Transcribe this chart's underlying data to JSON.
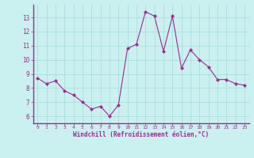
{
  "x": [
    0,
    1,
    2,
    3,
    4,
    5,
    6,
    7,
    8,
    9,
    10,
    11,
    12,
    13,
    14,
    15,
    16,
    17,
    18,
    19,
    20,
    21,
    22,
    23
  ],
  "y": [
    8.7,
    8.3,
    8.5,
    7.8,
    7.5,
    7.0,
    6.5,
    6.7,
    6.0,
    6.8,
    10.8,
    11.1,
    13.4,
    13.1,
    10.6,
    13.1,
    9.4,
    10.7,
    10.0,
    9.5,
    8.6,
    8.6,
    8.3,
    8.2
  ],
  "line_color": "#9B2D8E",
  "marker": "D",
  "marker_size": 2,
  "bg_color": "#CBF0F0",
  "grid_color": "#AADDDD",
  "xlabel": "Windchill (Refroidissement éolien,°C)",
  "xlabel_color": "#9B2D8E",
  "tick_color": "#9B2D8E",
  "ylim": [
    5.5,
    13.9
  ],
  "yticks": [
    6,
    7,
    8,
    9,
    10,
    11,
    12,
    13
  ],
  "xlim": [
    -0.5,
    23.5
  ],
  "xticks": [
    0,
    1,
    2,
    3,
    4,
    5,
    6,
    7,
    8,
    9,
    10,
    11,
    12,
    13,
    14,
    15,
    16,
    17,
    18,
    19,
    20,
    21,
    22,
    23
  ]
}
